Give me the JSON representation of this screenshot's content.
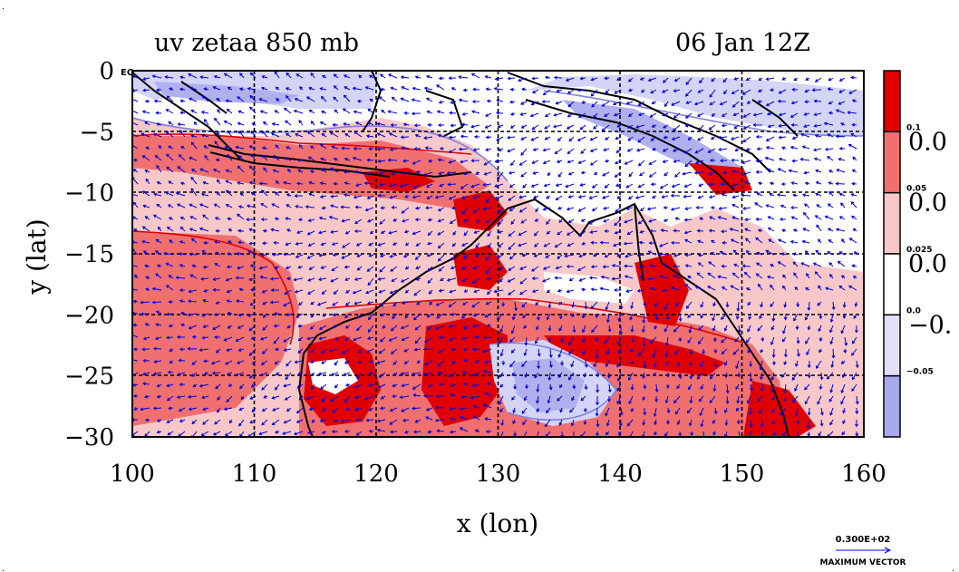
{
  "title_left": "uv zetaa 850 mb",
  "title_right": "06 Jan 12Z",
  "xlabel": "x (lon)",
  "ylabel": "y (lat)",
  "corner_label": "EQ",
  "x_ticks": [
    "100",
    "110",
    "120",
    "130",
    "140",
    "150",
    "160"
  ],
  "y_ticks": [
    "0",
    "−5",
    "−10",
    "−15",
    "−20",
    "−25",
    "−30"
  ],
  "colorbar": {
    "colors": [
      "#e00000",
      "#f07070",
      "#f8c8c8",
      "#ffffff",
      "#e0e0f8",
      "#a8a8ec"
    ],
    "small_labels": [
      "0.1",
      "0.05",
      "0.025",
      "0.0",
      "−0.05"
    ],
    "big_labels": [
      "0.0",
      "0.0",
      "0.0",
      "−0."
    ]
  },
  "vector_legend": {
    "value": "0.300E+02",
    "caption": "MAXIMUM VECTOR"
  },
  "colors": {
    "frame": "#000000",
    "coast": "#000000",
    "vectors": "#0000dd",
    "contour_red": "#e00000",
    "contour_blue": "#8080e0"
  }
}
